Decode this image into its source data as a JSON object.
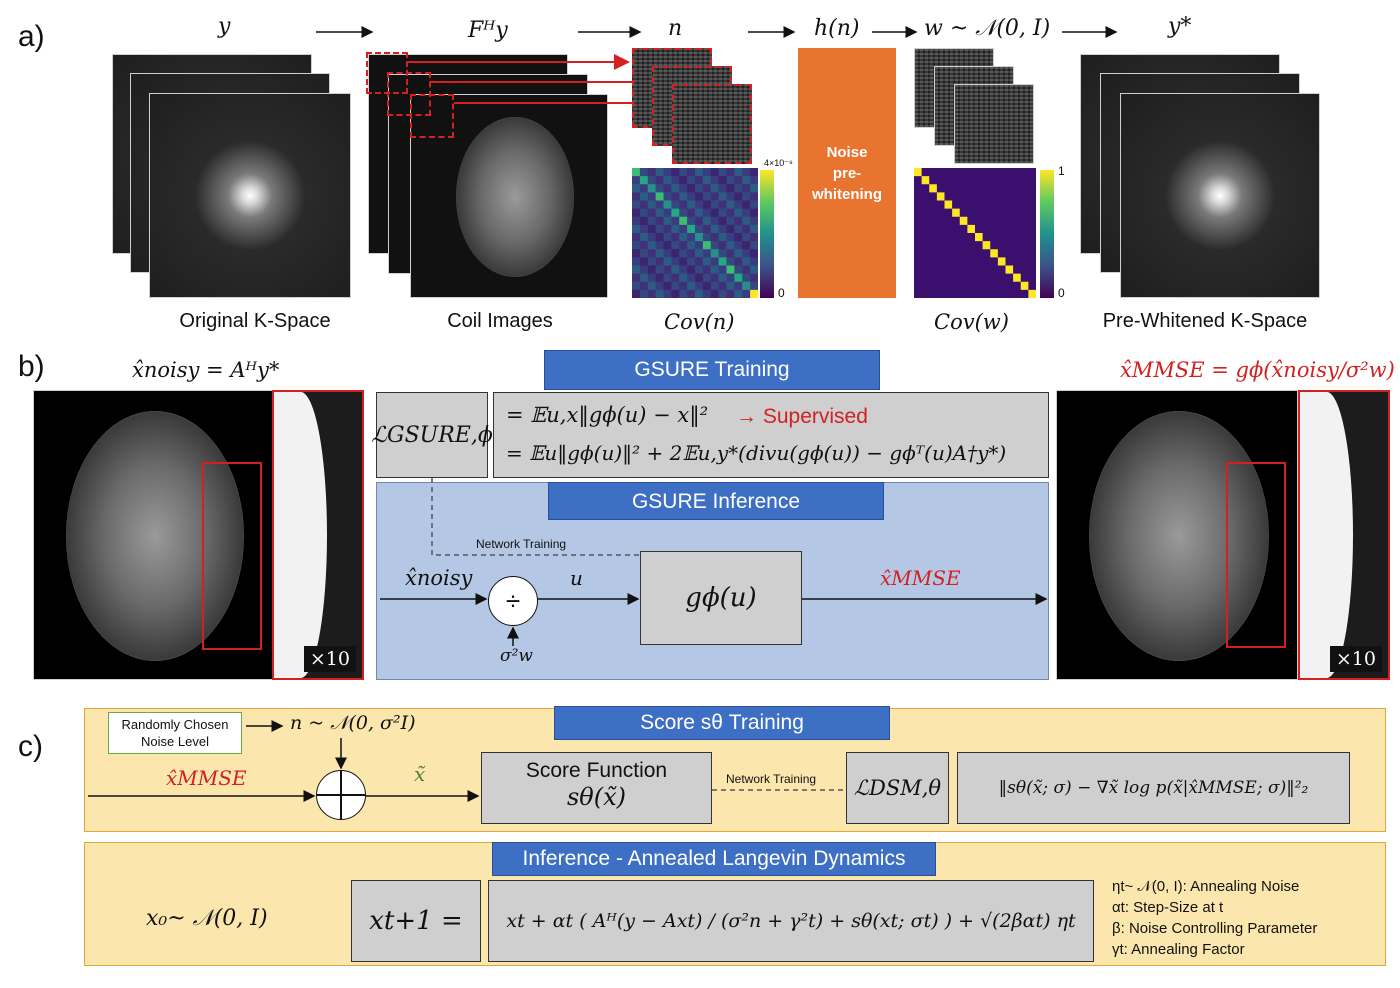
{
  "panel_a": {
    "letter": "a)",
    "headers": {
      "y": "y",
      "fhy": "Fᴴy",
      "n": "n",
      "hn": "h(n)",
      "w": "w ~ 𝒩(0, I)",
      "ystar": "y*"
    },
    "captions": {
      "kspace": "Original K-Space",
      "coil": "Coil Images",
      "covn": "Cov(n)",
      "covw": "Cov(w)",
      "prewhite": "Pre-Whitened K-Space"
    },
    "noise_block": {
      "line1": "Noise",
      "line2": "pre-",
      "line3": "whitening",
      "color": "#e8742f"
    },
    "colorbar_n": {
      "max": "4×10⁻⁸",
      "min": "0"
    },
    "colorbar_w": {
      "max": "1",
      "min": "0"
    }
  },
  "panel_b": {
    "letter": "b)",
    "noisy_title": "x̂noisy = Aᴴy*",
    "mmse_title": "x̂MMSE = gϕ(x̂noisy/σ²w)",
    "zoom_tag": "×10",
    "gsure_training": "GSURE Training",
    "gsure_inference": "GSURE Inference",
    "loss_label": "ℒGSURE,ϕ",
    "eq1": "= 𝔼u,x‖gϕ(u) − x‖²",
    "eq2": "= 𝔼u‖gϕ(u)‖² + 2𝔼u,y*(divu(gϕ(u)) − gϕᵀ(u)A†y*)",
    "supervised": "→ Supervised",
    "network_training": "Network Training",
    "x_noisy": "x̂noisy",
    "u": "u",
    "divide": "÷",
    "sigma_w": "σ²w",
    "g_phi": "gϕ(u)",
    "x_mmse": "x̂MMSE",
    "colors": {
      "red": "#d32020",
      "blue_panel": "#b4c8e6",
      "blue_title": "#3d6fc4"
    }
  },
  "panel_c": {
    "letter": "c)",
    "score_title": "Score sθ Training",
    "random_noise": "Randomly Chosen Noise Level",
    "n_dist": "n ~ 𝒩(0, σ²I)",
    "x_mmse": "x̂MMSE",
    "x_tilde": "x̃",
    "score_function": "Score Function",
    "score_sym": "sθ(x̃)",
    "network_training": "Network Training",
    "dsm_label": "ℒDSM,θ",
    "dsm_eq": "‖sθ(x̃; σ) − ∇x̃ log p(x̃|x̂MMSE; σ)‖²₂",
    "inference_title": "Inference - Annealed Langevin Dynamics",
    "x0": "x₀~ 𝒩(0, I)",
    "xt1": "xt+1 =",
    "update": "xt + αt ( Aᴴ(y − Axt) / (σ²n + γ²t) + sθ(xt; σt) ) + √(2βαt) ηt",
    "legend": [
      "ηt~ 𝒩(0, I): Annealing Noise",
      "αt: Step-Size at t",
      "β: Noise Controlling Parameter",
      "γt: Annealing Factor"
    ],
    "colors": {
      "panel_bg": "#fbe6ad",
      "panel_border": "#d9a93a",
      "green": "#5a7a3a"
    }
  }
}
